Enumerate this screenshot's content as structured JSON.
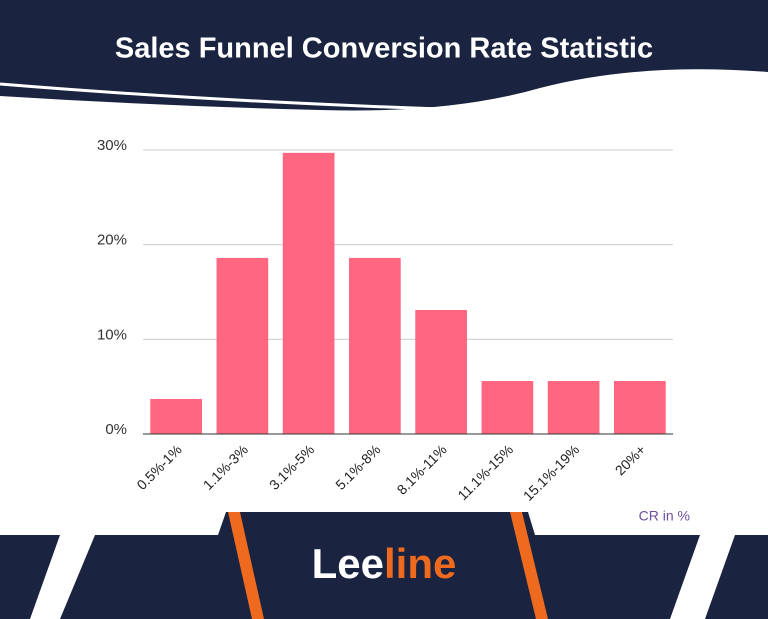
{
  "chart_data": {
    "type": "bar",
    "title": "Sales Funnel Conversion Rate Statistic",
    "categories": [
      "0.5%-1%",
      "1.1%-3%",
      "3.1%-5%",
      "5.1%-8%",
      "8.1%-11%",
      "11.1%-15%",
      "15.1%-19%",
      "20%+"
    ],
    "values": [
      3.7,
      18.6,
      29.7,
      18.6,
      13.1,
      5.6,
      5.6,
      5.6
    ],
    "color": "#ff6680",
    "ylim": [
      0,
      30
    ],
    "yticks": [
      {
        "value": 0,
        "label": "0%"
      },
      {
        "value": 10,
        "label": "10%"
      },
      {
        "value": 20,
        "label": "20%"
      },
      {
        "value": 30,
        "label": "30%"
      }
    ],
    "grid": true,
    "x_label": "CR in %"
  },
  "footer": {
    "logo_first": "Lee",
    "logo_second": "line"
  }
}
